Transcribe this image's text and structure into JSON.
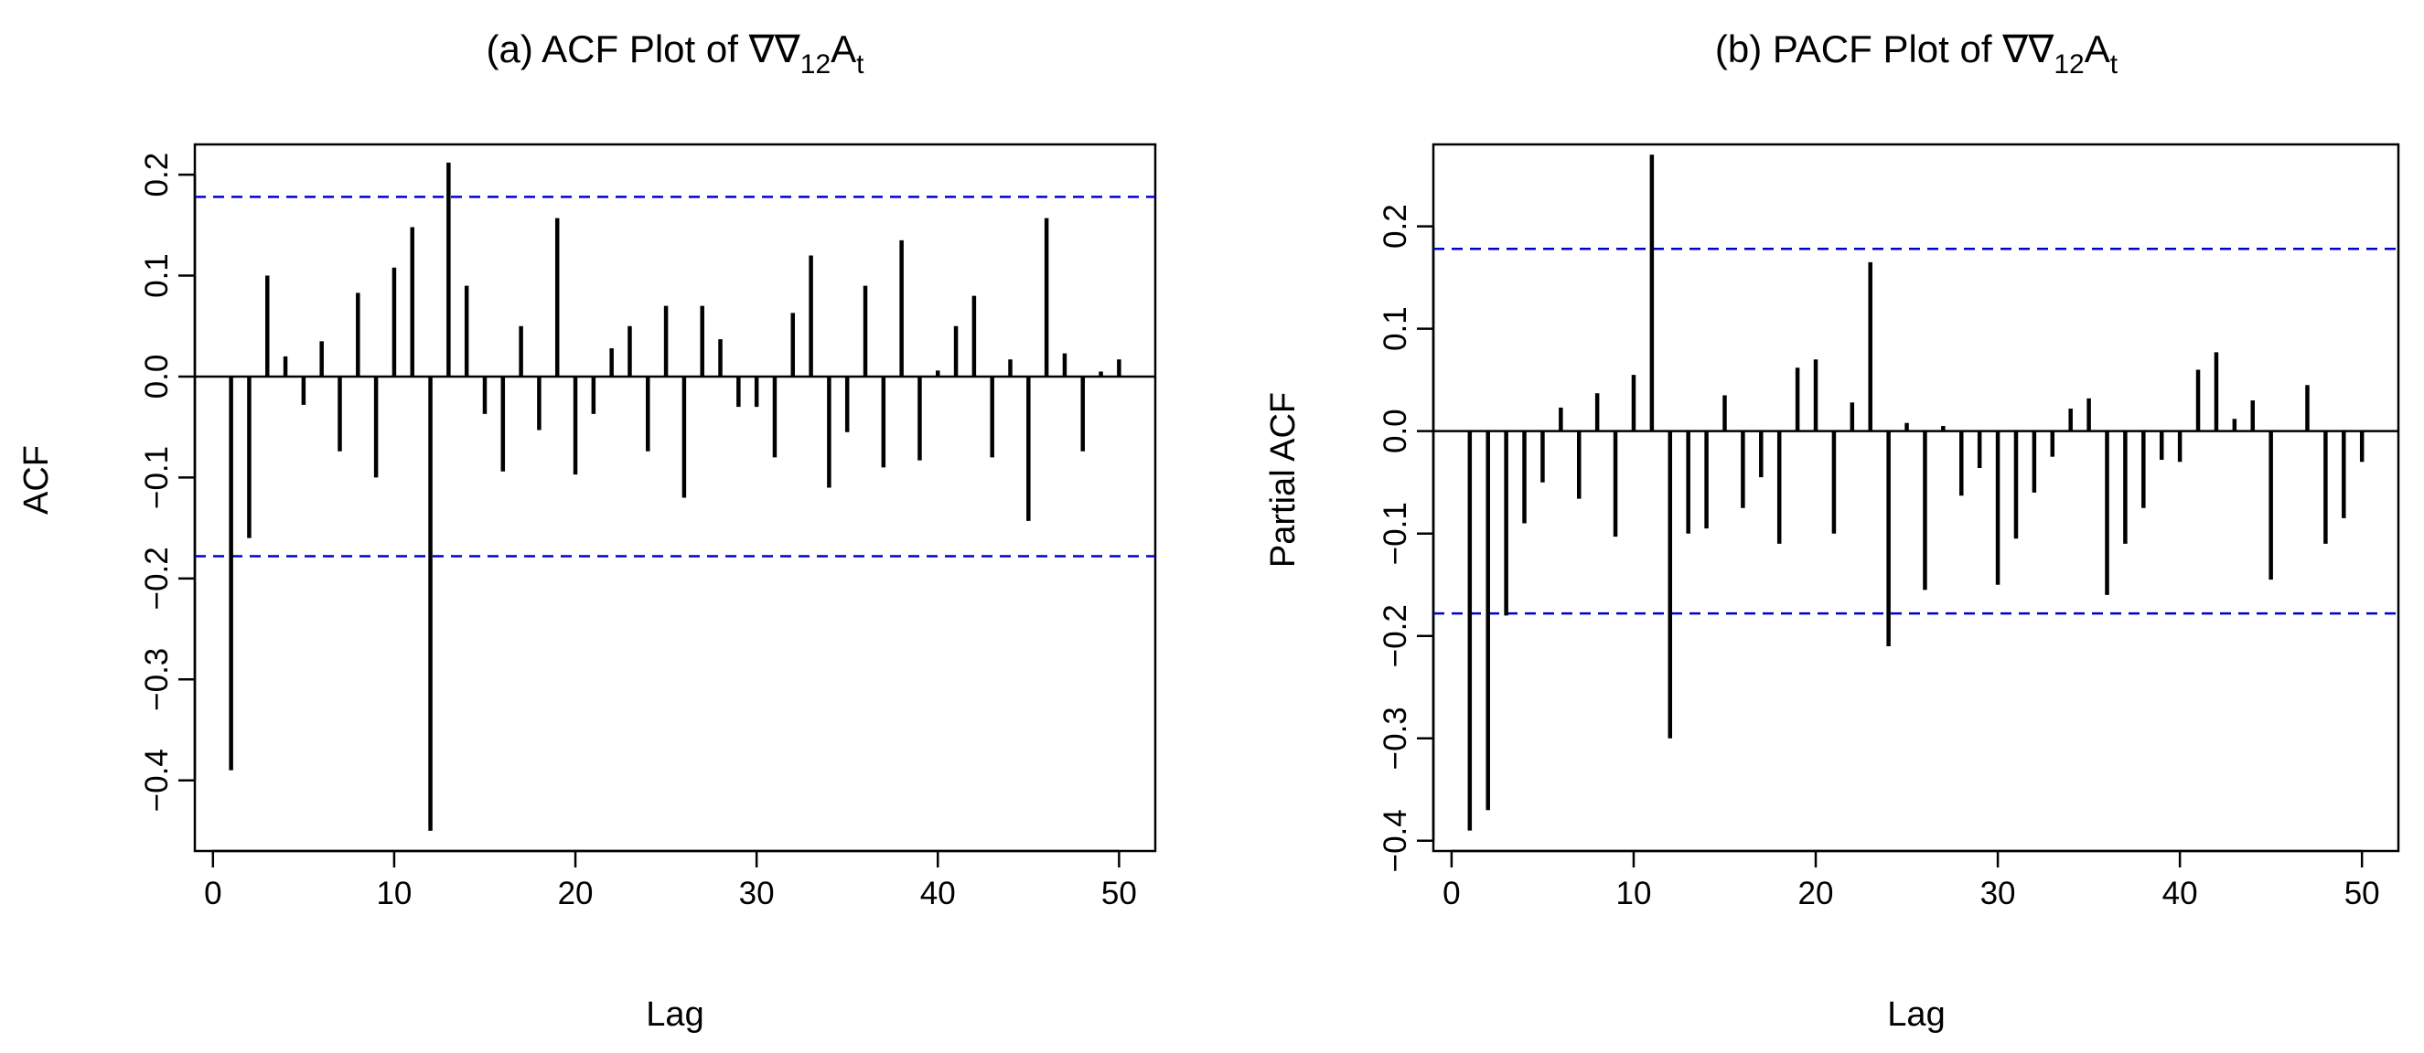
{
  "chart_data": [
    {
      "type": "bar",
      "title": "(a) ACF Plot of ∇∇",
      "title_subscript": "12",
      "title_var": "A",
      "title_var_sub": "t",
      "xlabel": "Lag",
      "ylabel": "ACF",
      "xlim": [
        -1,
        52
      ],
      "ylim": [
        -0.47,
        0.23
      ],
      "xticks": [
        0,
        10,
        20,
        30,
        40,
        50
      ],
      "yticks": [
        "0.2",
        "0.1",
        "0.0",
        "−0.1",
        "−0.2",
        "−0.3",
        "−0.4"
      ],
      "ytick_values": [
        0.2,
        0.1,
        0.0,
        -0.1,
        -0.2,
        -0.3,
        -0.4
      ],
      "confidence_bound": 0.178,
      "lags": [
        1,
        2,
        3,
        4,
        5,
        6,
        7,
        8,
        9,
        10,
        11,
        12,
        13,
        14,
        15,
        16,
        17,
        18,
        19,
        20,
        21,
        22,
        23,
        24,
        25,
        26,
        27,
        28,
        29,
        30,
        31,
        32,
        33,
        34,
        35,
        36,
        37,
        38,
        39,
        40,
        41,
        42,
        43,
        44,
        45,
        46,
        47,
        48,
        49,
        50
      ],
      "values": [
        -0.39,
        -0.16,
        0.1,
        0.02,
        -0.028,
        0.035,
        -0.074,
        0.083,
        -0.1,
        0.108,
        0.148,
        -0.45,
        0.212,
        0.09,
        -0.037,
        -0.094,
        0.05,
        -0.053,
        0.157,
        -0.097,
        -0.037,
        0.028,
        0.05,
        -0.074,
        0.07,
        -0.12,
        0.07,
        0.037,
        -0.03,
        -0.03,
        -0.08,
        0.063,
        0.12,
        -0.11,
        -0.055,
        0.09,
        -0.09,
        0.135,
        -0.083,
        0.006,
        0.05,
        0.08,
        -0.08,
        0.017,
        -0.143,
        0.157,
        0.023,
        -0.074,
        0.005,
        0.017
      ],
      "bound_color": "#0000cc"
    },
    {
      "type": "bar",
      "title": "(b) PACF Plot of ∇∇",
      "title_subscript": "12",
      "title_var": "A",
      "title_var_sub": "t",
      "xlabel": "Lag",
      "ylabel": "Partial ACF",
      "xlim": [
        -1,
        52
      ],
      "ylim": [
        -0.41,
        0.28
      ],
      "xticks": [
        0,
        10,
        20,
        30,
        40,
        50
      ],
      "yticks": [
        "0.2",
        "0.1",
        "0.0",
        "−0.1",
        "−0.2",
        "−0.3",
        "−0.4"
      ],
      "ytick_values": [
        0.2,
        0.1,
        0.0,
        -0.1,
        -0.2,
        -0.3,
        -0.4
      ],
      "confidence_bound": 0.178,
      "lags": [
        1,
        2,
        3,
        4,
        5,
        6,
        7,
        8,
        9,
        10,
        11,
        12,
        13,
        14,
        15,
        16,
        17,
        18,
        19,
        20,
        21,
        22,
        23,
        24,
        25,
        26,
        27,
        28,
        29,
        30,
        31,
        32,
        33,
        34,
        35,
        36,
        37,
        38,
        39,
        40,
        41,
        42,
        43,
        44,
        45,
        46,
        47,
        48,
        49,
        50
      ],
      "values": [
        -0.39,
        -0.37,
        -0.18,
        -0.09,
        -0.05,
        0.023,
        -0.066,
        0.037,
        -0.103,
        0.055,
        0.27,
        -0.3,
        -0.1,
        -0.095,
        0.035,
        -0.075,
        -0.045,
        -0.11,
        0.062,
        0.07,
        -0.1,
        0.028,
        0.165,
        -0.21,
        0.008,
        -0.155,
        0.005,
        -0.063,
        -0.036,
        -0.15,
        -0.105,
        -0.06,
        -0.025,
        0.022,
        0.032,
        -0.16,
        -0.11,
        -0.075,
        -0.028,
        -0.03,
        0.06,
        0.077,
        0.012,
        0.03,
        -0.145,
        0.0,
        0.045,
        -0.11,
        -0.085,
        -0.03
      ],
      "bound_color": "#0000cc"
    }
  ]
}
